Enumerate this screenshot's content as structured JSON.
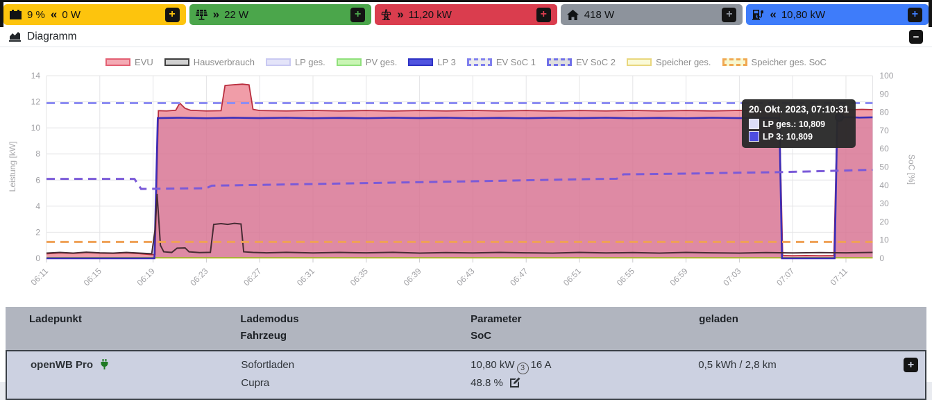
{
  "controls": {
    "expand": "+",
    "collapse": "−"
  },
  "status_boxes": {
    "battery": {
      "icon": "car-battery",
      "soc": "9 %",
      "arrow": "«",
      "power": "0 W",
      "color": "#fdc40d"
    },
    "pv": {
      "icon": "solar-panel",
      "arrow": "»",
      "power": "22 W",
      "color": "#4ba64b"
    },
    "grid": {
      "icon": "transmission-tower",
      "arrow": "»",
      "power": "11,20 kW",
      "color": "#da3d4e"
    },
    "house": {
      "icon": "house",
      "power": "418 W",
      "color": "#8d939c"
    },
    "chargepoints": {
      "icon": "charging-station",
      "arrow": "«",
      "power": "10,80 kW",
      "color": "#3e7cfa"
    }
  },
  "diagram_section": {
    "title": "Diagramm"
  },
  "chart_data": {
    "type": "line",
    "ylabel_left": "Leistung [kW]",
    "ylabel_right": "SoC [%]",
    "ylim_left": [
      0,
      14
    ],
    "ylim_right": [
      0,
      100
    ],
    "y_ticks_left": [
      0,
      2,
      4,
      6,
      8,
      10,
      12,
      14
    ],
    "y_ticks_right": [
      0,
      10,
      20,
      30,
      40,
      50,
      60,
      70,
      80,
      90,
      100
    ],
    "x_ticks": [
      "06:11",
      "06:15",
      "06:19",
      "06:23",
      "06:27",
      "06:31",
      "06:35",
      "06:39",
      "06:43",
      "06:47",
      "06:51",
      "06:55",
      "06:59",
      "07:03",
      "07:07",
      "07:11"
    ],
    "x_tick_interval_minutes": 4,
    "grid": true,
    "legend_position": "top",
    "series": [
      {
        "name": "EVU",
        "axis": "kW",
        "color": "#b92e3e",
        "width": 1.8,
        "dashed": false,
        "fill": "rgba(230,92,110,0.6)",
        "zfill": 3,
        "z": 4,
        "legend_fill": "#f4aab4",
        "legend_border": "#e36073",
        "points": [
          [
            0,
            0.35
          ],
          [
            1,
            0.42
          ],
          [
            2,
            0.38
          ],
          [
            3,
            0.45
          ],
          [
            4,
            0.4
          ],
          [
            5,
            0.38
          ],
          [
            6,
            0.42
          ],
          [
            7,
            0.36
          ],
          [
            7.9,
            0.28
          ],
          [
            8.15,
            0.3
          ],
          [
            8.4,
            11.32
          ],
          [
            9,
            11.3
          ],
          [
            9.7,
            11.35
          ],
          [
            10,
            11.9
          ],
          [
            10.4,
            11.5
          ],
          [
            10.8,
            11.35
          ],
          [
            12,
            11.3
          ],
          [
            13.1,
            11.32
          ],
          [
            13.4,
            13.25
          ],
          [
            14,
            13.3
          ],
          [
            14.7,
            13.35
          ],
          [
            15.2,
            13.3
          ],
          [
            15.5,
            11.42
          ],
          [
            16,
            11.33
          ],
          [
            18,
            11.3
          ],
          [
            20,
            11.34
          ],
          [
            22,
            11.3
          ],
          [
            24,
            11.33
          ],
          [
            26,
            11.29
          ],
          [
            28,
            11.33
          ],
          [
            30,
            11.3
          ],
          [
            32,
            11.34
          ],
          [
            34,
            11.3
          ],
          [
            36,
            11.33
          ],
          [
            38,
            11.29
          ],
          [
            40,
            11.33
          ],
          [
            42,
            11.3
          ],
          [
            44,
            11.34
          ],
          [
            46,
            11.3
          ],
          [
            48,
            11.33
          ],
          [
            50,
            11.3
          ],
          [
            52,
            11.34
          ],
          [
            54,
            11.31
          ],
          [
            55,
            11.3
          ],
          [
            55.25,
            0.22
          ],
          [
            56,
            0.2
          ],
          [
            57,
            0.22
          ],
          [
            58,
            0.2
          ],
          [
            59.1,
            0.21
          ],
          [
            59.35,
            11.35
          ],
          [
            60,
            11.45
          ],
          [
            60.5,
            11.4
          ],
          [
            61.2,
            11.42
          ],
          [
            62,
            11.4
          ]
        ]
      },
      {
        "name": "Hausverbrauch",
        "axis": "kW",
        "color": "#472c34",
        "width": 2,
        "dashed": false,
        "z": 6,
        "legend_fill": "#d0d0d0",
        "legend_border": "#3f3f3f",
        "points": [
          [
            0,
            0.4
          ],
          [
            1,
            0.45
          ],
          [
            2,
            0.4
          ],
          [
            3,
            0.47
          ],
          [
            4,
            0.42
          ],
          [
            5,
            0.4
          ],
          [
            6,
            0.45
          ],
          [
            7,
            0.4
          ],
          [
            7.9,
            0.35
          ],
          [
            8.15,
            2.2
          ],
          [
            8.3,
            4.95
          ],
          [
            8.55,
            1.0
          ],
          [
            8.8,
            0.5
          ],
          [
            9.4,
            0.45
          ],
          [
            9.8,
            0.78
          ],
          [
            10.4,
            0.8
          ],
          [
            10.7,
            0.5
          ],
          [
            11.5,
            0.44
          ],
          [
            12.3,
            0.46
          ],
          [
            12.55,
            2.6
          ],
          [
            13.1,
            2.66
          ],
          [
            13.6,
            2.6
          ],
          [
            14.1,
            2.68
          ],
          [
            14.6,
            2.63
          ],
          [
            14.8,
            0.5
          ],
          [
            15.5,
            0.45
          ],
          [
            16.5,
            0.42
          ],
          [
            18,
            0.46
          ],
          [
            20,
            0.41
          ],
          [
            22,
            0.45
          ],
          [
            24,
            0.42
          ],
          [
            26,
            0.46
          ],
          [
            28,
            0.4
          ],
          [
            30,
            0.44
          ],
          [
            32,
            0.41
          ],
          [
            34,
            0.45
          ],
          [
            36,
            0.42
          ],
          [
            38,
            0.4
          ],
          [
            40,
            0.45
          ],
          [
            42,
            0.41
          ],
          [
            44,
            0.44
          ],
          [
            46,
            0.4
          ],
          [
            48,
            0.45
          ],
          [
            50,
            0.42
          ],
          [
            52,
            0.4
          ],
          [
            54,
            0.44
          ],
          [
            56,
            0.41
          ],
          [
            58,
            0.44
          ],
          [
            60,
            0.42
          ],
          [
            62,
            0.45
          ]
        ]
      },
      {
        "name": "LP ges.",
        "axis": "kW",
        "color": "#c9c9f2",
        "width": 1.5,
        "dashed": false,
        "fill": "rgba(222,222,248,0.55)",
        "zfill": 1,
        "z": 1,
        "legend_fill": "#e4e4f9",
        "legend_border": "#c9c9f2",
        "points": [
          [
            0,
            0
          ],
          [
            8.1,
            0
          ],
          [
            8.35,
            10.75
          ],
          [
            10,
            10.78
          ],
          [
            12,
            10.74
          ],
          [
            14,
            10.78
          ],
          [
            16,
            10.75
          ],
          [
            18,
            10.78
          ],
          [
            20,
            10.74
          ],
          [
            22,
            10.77
          ],
          [
            24,
            10.74
          ],
          [
            26,
            10.78
          ],
          [
            28,
            10.75
          ],
          [
            30,
            10.78
          ],
          [
            32,
            10.74
          ],
          [
            34,
            10.77
          ],
          [
            36,
            10.74
          ],
          [
            38,
            10.78
          ],
          [
            40,
            10.75
          ],
          [
            42,
            10.78
          ],
          [
            44,
            10.74
          ],
          [
            46,
            10.77
          ],
          [
            48,
            10.74
          ],
          [
            50,
            10.78
          ],
          [
            52,
            10.75
          ],
          [
            54,
            10.77
          ],
          [
            55,
            10.76
          ],
          [
            55.2,
            0
          ],
          [
            59.15,
            0
          ],
          [
            59.35,
            10.78
          ],
          [
            60.2,
            10.82
          ],
          [
            61,
            10.79
          ],
          [
            62,
            10.81
          ]
        ]
      },
      {
        "name": "PV ges.",
        "axis": "kW",
        "color": "#67a23e",
        "width": 1.6,
        "dashed": false,
        "z": 2,
        "legend_fill": "#c9f5b4",
        "legend_border": "#90e07c",
        "points": [
          [
            0,
            0.06
          ],
          [
            62,
            0.06
          ]
        ]
      },
      {
        "name": "LP 3",
        "axis": "kW",
        "color": "#3c2eb8",
        "width": 2.6,
        "dashed": false,
        "fill": "rgba(110,100,225,0.22)",
        "zfill": 2,
        "z": 5,
        "legend_fill": "#5054e0",
        "legend_border": "#2f33c4",
        "points": [
          [
            0,
            0
          ],
          [
            8.1,
            0
          ],
          [
            8.35,
            10.75
          ],
          [
            10,
            10.78
          ],
          [
            12,
            10.74
          ],
          [
            14,
            10.78
          ],
          [
            16,
            10.75
          ],
          [
            18,
            10.78
          ],
          [
            20,
            10.74
          ],
          [
            22,
            10.77
          ],
          [
            24,
            10.74
          ],
          [
            26,
            10.78
          ],
          [
            28,
            10.75
          ],
          [
            30,
            10.78
          ],
          [
            32,
            10.74
          ],
          [
            34,
            10.77
          ],
          [
            36,
            10.74
          ],
          [
            38,
            10.78
          ],
          [
            40,
            10.75
          ],
          [
            42,
            10.78
          ],
          [
            44,
            10.74
          ],
          [
            46,
            10.77
          ],
          [
            48,
            10.74
          ],
          [
            50,
            10.78
          ],
          [
            52,
            10.75
          ],
          [
            54,
            10.77
          ],
          [
            55,
            10.76
          ],
          [
            55.2,
            0
          ],
          [
            59.15,
            0
          ],
          [
            59.35,
            10.78
          ],
          [
            60.2,
            10.82
          ],
          [
            61,
            10.79
          ],
          [
            62,
            10.81
          ]
        ]
      },
      {
        "name": "EV SoC 1",
        "axis": "%",
        "color": "#8d8df2",
        "width": 3,
        "dashed": true,
        "z": 7,
        "legend_fill": "#ececec",
        "legend_border": "#8080ee",
        "points": [
          [
            0,
            85
          ],
          [
            62,
            85
          ]
        ]
      },
      {
        "name": "EV SoC 2",
        "axis": "%",
        "color": "#7a5ad8",
        "width": 3,
        "dashed": true,
        "z": 8,
        "legend_fill": "#dedede",
        "legend_border": "#7070e8",
        "points": [
          [
            0,
            43.5
          ],
          [
            6.6,
            43.5
          ],
          [
            7.1,
            38
          ],
          [
            12,
            38.4
          ],
          [
            12.4,
            39.8
          ],
          [
            16,
            40.2
          ],
          [
            20,
            40.7
          ],
          [
            24,
            41.2
          ],
          [
            28,
            41.7
          ],
          [
            32,
            42.2
          ],
          [
            35,
            42.6
          ],
          [
            38,
            43.0
          ],
          [
            41,
            43.4
          ],
          [
            42.8,
            43.6
          ],
          [
            43.3,
            46.0
          ],
          [
            46,
            46.2
          ],
          [
            49,
            46.5
          ],
          [
            52,
            46.9
          ],
          [
            55,
            47.2
          ],
          [
            58,
            47.7
          ],
          [
            60.5,
            48.2
          ],
          [
            62,
            48.5
          ]
        ]
      },
      {
        "name": "Speicher ges.",
        "axis": "kW",
        "color": "#cfc12c",
        "width": 1.6,
        "dashed": false,
        "z": 3,
        "legend_fill": "#fafad8",
        "legend_border": "#e9d77e",
        "points": [
          [
            0,
            0.03
          ],
          [
            62,
            0.03
          ]
        ]
      },
      {
        "name": "Speicher ges. SoC",
        "axis": "%",
        "color": "#efa156",
        "width": 3,
        "dashed": true,
        "z": 9,
        "legend_fill": "#f7f7cf",
        "legend_border": "#f0a852",
        "points": [
          [
            0,
            9
          ],
          [
            62,
            9
          ]
        ]
      }
    ],
    "tooltip": {
      "title": "20. Okt. 2023, 07:10:31",
      "rows": [
        {
          "label": "LP ges.:",
          "value": "10,809",
          "swatch": "#dcdcf8"
        },
        {
          "label": "LP 3:",
          "value": "10,809",
          "swatch": "#4d4de0"
        }
      ],
      "marker": {
        "t": 59.5,
        "kw": 10.809
      }
    }
  },
  "table": {
    "headers": {
      "col1": "Ladepunkt",
      "col2a": "Lademodus",
      "col2b": "Fahrzeug",
      "col3a": "Parameter",
      "col3b": "SoC",
      "col4": "geladen"
    },
    "row": {
      "name": "openWB Pro",
      "mode": "Sofortladen",
      "vehicle": "Cupra",
      "param_power": "10,80 kW",
      "phases": "3",
      "param_current": "16 A",
      "soc": "48.8 %",
      "charged": "0,5 kWh / 2,8 km"
    }
  }
}
